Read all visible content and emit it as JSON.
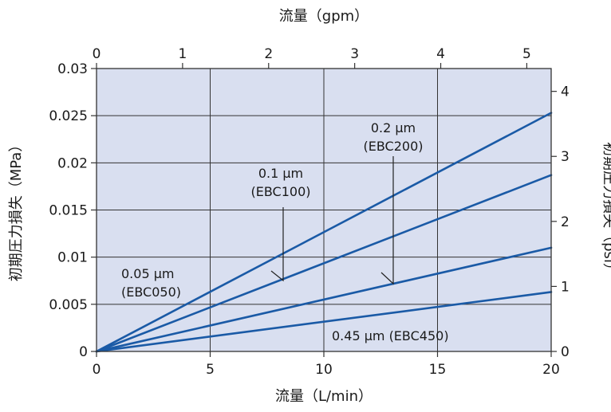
{
  "chart_data": {
    "type": "line",
    "title": "",
    "xlabel_bottom": "流量（L/min）",
    "xlabel_top": "流量（gpm）",
    "ylabel_left": "初期圧力損失（MPa）",
    "ylabel_right": "初期圧力損失（psi）",
    "xlim": [
      0,
      20
    ],
    "ylim": [
      0,
      0.03
    ],
    "x_ticks": [
      "0",
      "5",
      "10",
      "15",
      "20"
    ],
    "y_ticks": [
      "0",
      "0.005",
      "0.01",
      "0.015",
      "0.02",
      "0.025",
      "0.03"
    ],
    "top_ticks": [
      {
        "value": 0,
        "label": "0"
      },
      {
        "value": 1,
        "label": "1"
      },
      {
        "value": 2,
        "label": "2"
      },
      {
        "value": 3,
        "label": "3"
      },
      {
        "value": 4,
        "label": "4"
      },
      {
        "value": 5,
        "label": "5"
      }
    ],
    "right_ticks": [
      {
        "value": 0,
        "label": "0"
      },
      {
        "value": 1,
        "label": "1"
      },
      {
        "value": 2,
        "label": "2"
      },
      {
        "value": 3,
        "label": "3"
      },
      {
        "value": 4,
        "label": "4"
      }
    ],
    "grid": true,
    "plot_bg": "#d9dff0",
    "series_color": "#1a5aa6",
    "series": [
      {
        "name_lines": [
          "0.05 µm",
          "(EBC050)"
        ],
        "x": [
          0,
          20
        ],
        "y": [
          0,
          0.0253
        ]
      },
      {
        "name_lines": [
          "0.1 µm",
          "(EBC100)"
        ],
        "x": [
          0,
          20
        ],
        "y": [
          0,
          0.0187
        ]
      },
      {
        "name_lines": [
          "0.2 µm",
          "(EBC200)"
        ],
        "x": [
          0,
          20
        ],
        "y": [
          0,
          0.011
        ]
      },
      {
        "name_lines": [
          "0.45 µm (EBC450)"
        ],
        "x": [
          0,
          20
        ],
        "y": [
          0,
          0.0063
        ]
      }
    ]
  }
}
